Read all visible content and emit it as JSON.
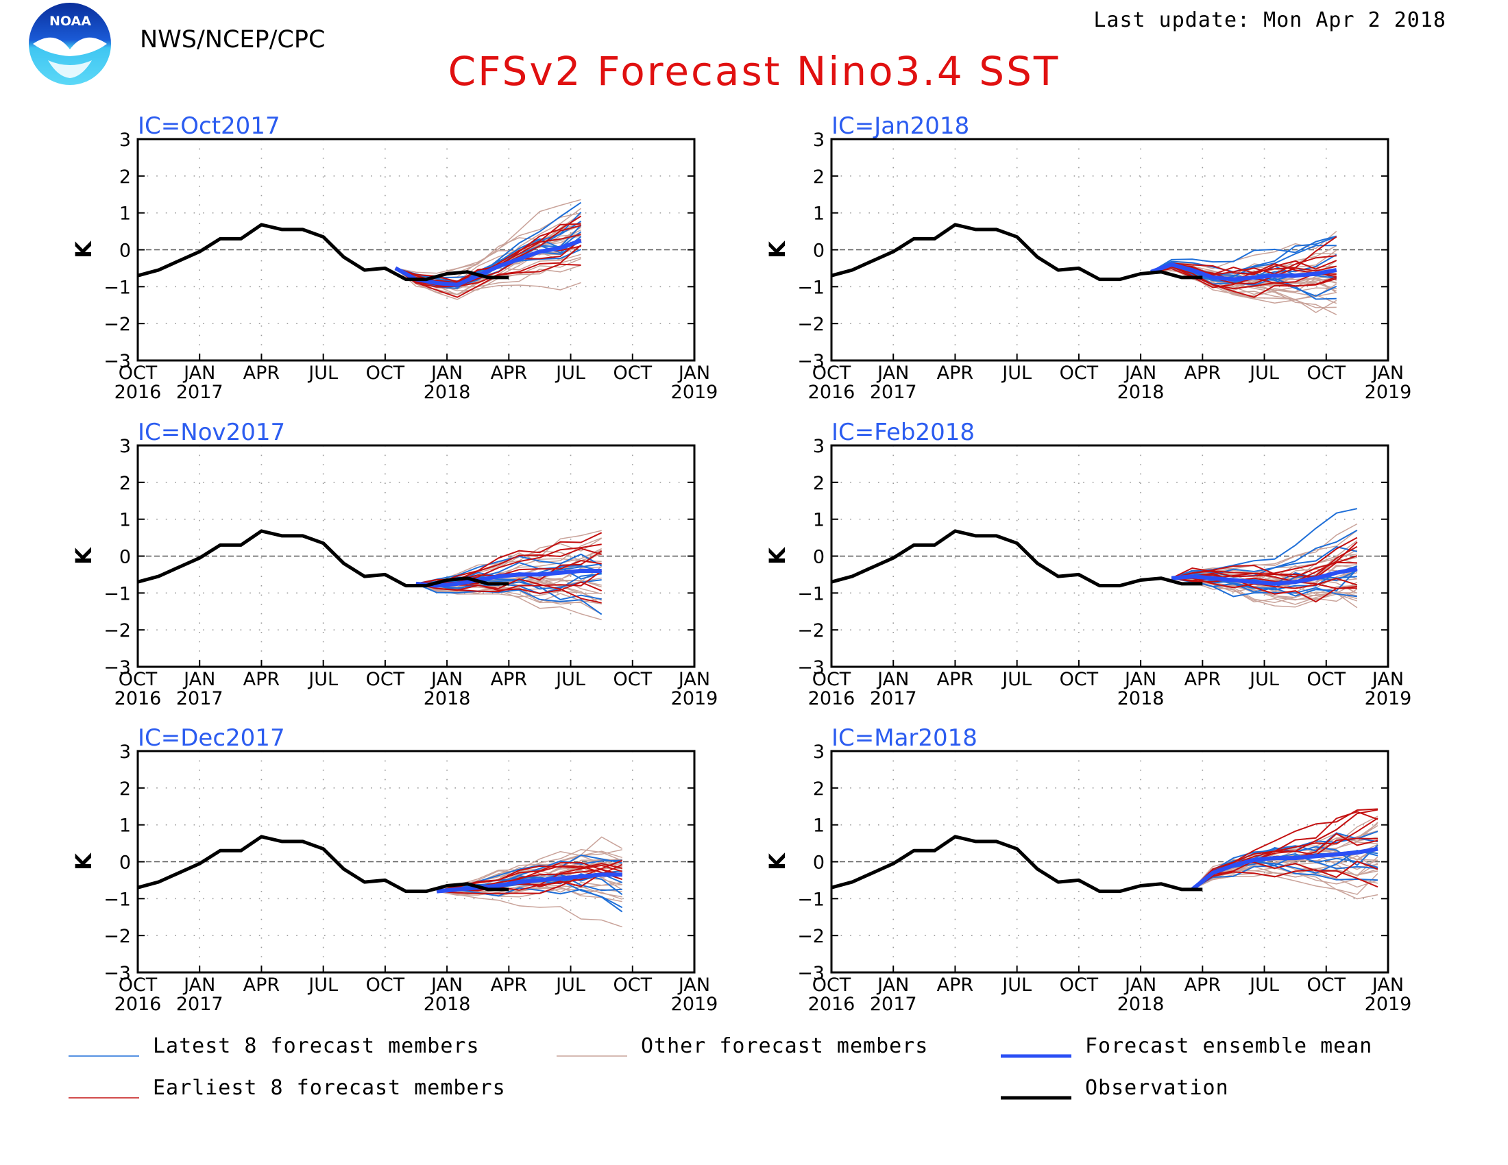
{
  "header": {
    "agency": "NWS/NCEP/CPC",
    "last_update": "Last update: Mon Apr 2 2018",
    "logo_text": "NOAA"
  },
  "chart_data": {
    "title": "CFSv2 Forecast Nino3.4 SST",
    "type": "line",
    "ylabel": "K",
    "ylim": [
      -3,
      3
    ],
    "yticks": [
      3,
      2,
      1,
      0,
      -1,
      -2,
      -3
    ],
    "ytick_labels": [
      "3",
      "2",
      "1",
      "0",
      "−1",
      "−2",
      "−3"
    ],
    "xlim": [
      0,
      27
    ],
    "xticks": [
      {
        "m": 0,
        "top": "OCT",
        "bottom": "2016"
      },
      {
        "m": 3,
        "top": "JAN",
        "bottom": "2017"
      },
      {
        "m": 6,
        "top": "APR",
        "bottom": ""
      },
      {
        "m": 9,
        "top": "JUL",
        "bottom": ""
      },
      {
        "m": 12,
        "top": "OCT",
        "bottom": ""
      },
      {
        "m": 15,
        "top": "JAN",
        "bottom": "2018"
      },
      {
        "m": 18,
        "top": "APR",
        "bottom": ""
      },
      {
        "m": 21,
        "top": "JUL",
        "bottom": ""
      },
      {
        "m": 24,
        "top": "OCT",
        "bottom": ""
      },
      {
        "m": 27,
        "top": "JAN",
        "bottom": "2019"
      }
    ],
    "observation": {
      "name": "Observation",
      "months": [
        0,
        1,
        2,
        3,
        4,
        5,
        6,
        7,
        8,
        9,
        10,
        11,
        12,
        13,
        14,
        15,
        16,
        17,
        18
      ],
      "values": [
        -0.7,
        -0.55,
        -0.3,
        -0.05,
        0.3,
        0.3,
        0.68,
        0.55,
        0.55,
        0.35,
        -0.2,
        -0.55,
        -0.5,
        -0.8,
        -0.8,
        -0.65,
        -0.6,
        -0.75,
        -0.75
      ]
    },
    "panels": [
      {
        "ic": "IC=Oct2017",
        "start": 12.5,
        "mean": [
          -0.5,
          -0.8,
          -0.9,
          -0.95,
          -0.7,
          -0.45,
          -0.25,
          -0.05,
          0.05,
          0.25
        ],
        "spread": 0.8,
        "seed": 11
      },
      {
        "ic": "IC=Jan2018",
        "start": 15.5,
        "mean": [
          -0.6,
          -0.4,
          -0.55,
          -0.75,
          -0.8,
          -0.75,
          -0.7,
          -0.7,
          -0.65,
          -0.55
        ],
        "spread": 0.75,
        "seed": 23
      },
      {
        "ic": "IC=Nov2017",
        "start": 13.5,
        "mean": [
          -0.75,
          -0.8,
          -0.75,
          -0.65,
          -0.55,
          -0.5,
          -0.5,
          -0.45,
          -0.4,
          -0.4
        ],
        "spread": 0.8,
        "seed": 37
      },
      {
        "ic": "IC=Feb2018",
        "start": 16.5,
        "mean": [
          -0.6,
          -0.55,
          -0.6,
          -0.65,
          -0.7,
          -0.75,
          -0.7,
          -0.6,
          -0.45,
          -0.35
        ],
        "spread": 0.85,
        "seed": 41
      },
      {
        "ic": "IC=Dec2017",
        "start": 14.5,
        "mean": [
          -0.8,
          -0.75,
          -0.7,
          -0.65,
          -0.55,
          -0.5,
          -0.45,
          -0.4,
          -0.35,
          -0.35
        ],
        "spread": 0.75,
        "seed": 53
      },
      {
        "ic": "IC=Mar2018",
        "start": 17.5,
        "mean": [
          -0.75,
          -0.3,
          -0.1,
          0.05,
          0.1,
          0.1,
          0.15,
          0.2,
          0.25,
          0.35
        ],
        "spread": 0.85,
        "seed": 67
      }
    ]
  },
  "legend": [
    {
      "label": "Latest 8 forecast members",
      "color": "#1f6fd8",
      "kind": "latest"
    },
    {
      "label": "Other forecast members",
      "color": "#c9a39a",
      "kind": "other"
    },
    {
      "label": "Forecast ensemble mean",
      "color": "#2a4ff5",
      "kind": "mean"
    },
    {
      "label": "Earliest 8 forecast members",
      "color": "#c41010",
      "kind": "earliest"
    },
    {
      "label": "Observation",
      "color": "#000000",
      "kind": "obs"
    }
  ]
}
